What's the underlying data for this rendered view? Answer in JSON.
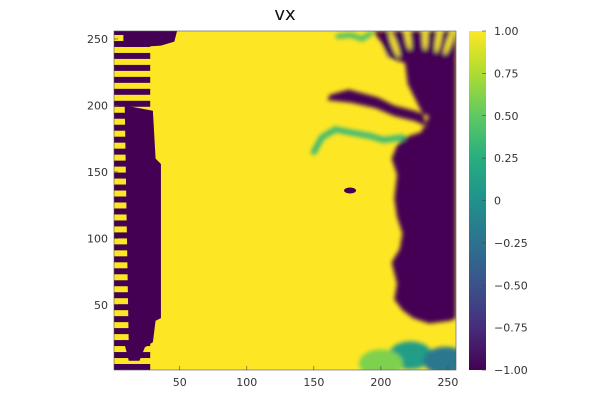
{
  "chart_data": {
    "type": "heatmap",
    "title": "vx",
    "xlabel": "",
    "ylabel": "",
    "xlim": [
      1,
      256
    ],
    "ylim": [
      1,
      256
    ],
    "grid": false,
    "xticks": [
      50,
      100,
      150,
      200,
      250
    ],
    "yticks": [
      50,
      100,
      150,
      200,
      250
    ],
    "colorbar": {
      "colormap": "viridis",
      "range": [
        -1.0,
        1.0
      ],
      "ticks": [
        -1.0,
        -0.75,
        -0.5,
        -0.25,
        0,
        0.25,
        0.5,
        0.75,
        1.0
      ],
      "tick_labels": [
        "−1.00",
        "−0.75",
        "−0.50",
        "−0.25",
        "0",
        "0.25",
        "0.50",
        "0.75",
        "1.00"
      ],
      "placement": "right"
    },
    "regions": {
      "left_stripes": {
        "x": [
          1,
          28
        ],
        "stripe_period_y": 9,
        "value_a": 1.0,
        "value_b": -1.0
      },
      "left_block": [
        [
          8,
          24
        ],
        [
          12,
          20
        ],
        [
          9,
          200
        ],
        [
          30,
          196
        ],
        [
          32,
          160
        ],
        [
          36,
          156
        ],
        [
          36,
          40
        ],
        [
          32,
          38
        ],
        [
          30,
          22
        ],
        [
          24,
          18
        ],
        [
          20,
          8
        ],
        [
          12,
          8
        ]
      ],
      "top_band_dark": [
        [
          8,
          256
        ],
        [
          48,
          256
        ],
        [
          46,
          248
        ],
        [
          36,
          245
        ],
        [
          20,
          244
        ],
        [
          8,
          244
        ]
      ],
      "right_dark": [
        [
          256,
          256
        ],
        [
          256,
          40
        ],
        [
          252,
          38
        ],
        [
          236,
          36
        ],
        [
          224,
          40
        ],
        [
          216,
          46
        ],
        [
          210,
          54
        ],
        [
          212,
          66
        ],
        [
          208,
          82
        ],
        [
          214,
          92
        ],
        [
          216,
          104
        ],
        [
          212,
          116
        ],
        [
          210,
          130
        ],
        [
          212,
          148
        ],
        [
          208,
          160
        ],
        [
          212,
          170
        ],
        [
          218,
          176
        ],
        [
          230,
          180
        ],
        [
          236,
          192
        ],
        [
          225,
          196
        ],
        [
          210,
          200
        ],
        [
          198,
          206
        ],
        [
          176,
          212
        ],
        [
          162,
          208
        ],
        [
          160,
          204
        ],
        [
          178,
          202
        ],
        [
          196,
          198
        ],
        [
          210,
          192
        ],
        [
          226,
          188
        ],
        [
          234,
          184
        ],
        [
          232,
          192
        ],
        [
          226,
          204
        ],
        [
          220,
          216
        ],
        [
          218,
          232
        ],
        [
          205,
          236
        ],
        [
          200,
          248
        ],
        [
          194,
          256
        ]
      ],
      "right_fingers": [
        {
          "x": 203,
          "y": 236
        },
        {
          "x": 210,
          "y": 246
        },
        {
          "x": 220,
          "y": 252
        },
        {
          "x": 233,
          "y": 252
        },
        {
          "x": 243,
          "y": 250
        },
        {
          "x": 251,
          "y": 248
        }
      ],
      "bottom_right_mid": [
        {
          "x": 222,
          "y": 12,
          "value": 0.1
        },
        {
          "x": 248,
          "y": 8,
          "value": -0.2
        },
        {
          "x": 200,
          "y": 6,
          "value": 0.6
        }
      ],
      "small_dark_blob": {
        "x": 177,
        "y": 136,
        "value": -1.0
      },
      "mid_stream": [
        [
          150,
          165
        ],
        [
          156,
          176
        ],
        [
          166,
          182
        ],
        [
          176,
          180
        ],
        [
          192,
          177
        ],
        [
          202,
          174
        ],
        [
          216,
          176
        ]
      ],
      "top_mid_teal": [
        [
          168,
          252
        ],
        [
          178,
          253
        ],
        [
          186,
          250
        ],
        [
          192,
          254
        ]
      ]
    }
  }
}
